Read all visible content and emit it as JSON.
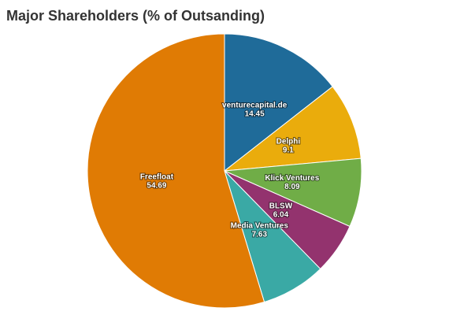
{
  "chart_data": {
    "type": "pie",
    "title": "Major Shareholders (% of Outsanding)",
    "categories": [
      "venturecapital.de",
      "Delphi",
      "Klick Ventures",
      "BLSW",
      "Media Ventures",
      "Freefloat"
    ],
    "values": [
      14.45,
      9.1,
      8.09,
      6.04,
      7.63,
      54.69
    ],
    "colors": [
      "#1f6b99",
      "#eaac0c",
      "#70ad47",
      "#93336e",
      "#3aa9a5",
      "#e07b04"
    ]
  }
}
